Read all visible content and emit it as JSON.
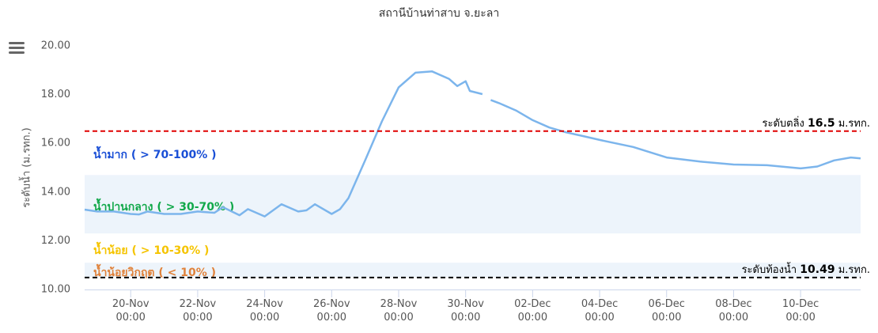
{
  "chart_data": {
    "type": "line",
    "title": "สถานีบ้านท่าสาบ จ.ยะลา",
    "y_label": "ระดับน้ำ (ม.รทก.)",
    "ylim": [
      10,
      20
    ],
    "yticks": [
      {
        "value": 10,
        "label": "10.00"
      },
      {
        "value": 12,
        "label": "12.00"
      },
      {
        "value": 14,
        "label": "14.00"
      },
      {
        "value": 16,
        "label": "16.00"
      },
      {
        "value": 18,
        "label": "18.00"
      },
      {
        "value": 20,
        "label": "20.00"
      }
    ],
    "xlim": [
      "18-Nov 15:00",
      "11-Dec 19:00"
    ],
    "xticks": [
      "20-Nov\n00:00",
      "22-Nov\n00:00",
      "24-Nov\n00:00",
      "26-Nov\n00:00",
      "28-Nov\n00:00",
      "30-Nov\n00:00",
      "02-Dec\n00:00",
      "04-Dec\n00:00",
      "06-Dec\n00:00",
      "08-Dec\n00:00",
      "10-Dec\n00:00"
    ],
    "grid": false,
    "x": [
      "18-Nov 15:00",
      "19-Nov 00:00",
      "19-Nov 12:00",
      "20-Nov 00:00",
      "20-Nov 06:00",
      "20-Nov 12:00",
      "21-Nov 00:00",
      "21-Nov 12:00",
      "22-Nov 00:00",
      "22-Nov 12:00",
      "22-Nov 18:00",
      "23-Nov 06:00",
      "23-Nov 12:00",
      "24-Nov 00:00",
      "24-Nov 12:00",
      "25-Nov 00:00",
      "25-Nov 06:00",
      "25-Nov 12:00",
      "26-Nov 00:00",
      "26-Nov 06:00",
      "26-Nov 12:00",
      "27-Nov 00:00",
      "27-Nov 12:00",
      "28-Nov 00:00",
      "28-Nov 12:00",
      "29-Nov 00:00",
      "29-Nov 12:00",
      "29-Nov 18:00",
      "30-Nov 00:00",
      "30-Nov 03:00",
      "30-Nov 12:00",
      "30-Nov 15:00",
      "30-Nov 18:00",
      "01-Dec 00:00",
      "01-Dec 12:00",
      "02-Dec 00:00",
      "02-Dec 12:00",
      "03-Dec 00:00",
      "03-Dec 12:00",
      "04-Dec 00:00",
      "05-Dec 00:00",
      "06-Dec 00:00",
      "07-Dec 00:00",
      "08-Dec 00:00",
      "09-Dec 00:00",
      "10-Dec 00:00",
      "10-Dec 12:00",
      "11-Dec 00:00",
      "11-Dec 12:00",
      "11-Dec 19:00"
    ],
    "series": [
      {
        "name": "ระดับน้ำ",
        "color": "#7cb5ec",
        "values": [
          13.28,
          13.2,
          13.2,
          13.1,
          13.08,
          13.2,
          13.1,
          13.1,
          13.2,
          13.15,
          13.38,
          13.05,
          13.3,
          13.0,
          13.5,
          13.2,
          13.25,
          13.5,
          13.1,
          13.3,
          13.75,
          15.3,
          16.9,
          18.3,
          18.9,
          18.95,
          18.65,
          18.35,
          18.55,
          18.15,
          18.02,
          null,
          17.78,
          17.65,
          17.35,
          16.95,
          16.65,
          16.45,
          16.3,
          16.14,
          15.85,
          15.42,
          15.25,
          15.13,
          15.1,
          14.97,
          15.05,
          15.3,
          15.42,
          15.38
        ]
      }
    ],
    "bands": [
      {
        "from": 12.3,
        "to": 14.7,
        "color": "#edf4fb"
      },
      {
        "from": 10.5,
        "to": 11.1,
        "color": "#edf4fb"
      }
    ],
    "zones": [
      {
        "label": "น้ำมาก ( > 70-100% )",
        "color": "#1a4fd6"
      },
      {
        "label": "น้ำปานกลาง ( > 30-70% )",
        "color": "#11a84a"
      },
      {
        "label": "น้ำน้อย ( > 10-30% )",
        "color": "#f5c400"
      },
      {
        "label": "น้ำน้อยวิกฤต ( < 10% )",
        "color": "#e0823b"
      }
    ],
    "plot_lines": [
      {
        "value": 16.5,
        "color": "#e00000",
        "prefix": "ระดับตลิ่ง",
        "suffix": "ม.รทก."
      },
      {
        "value": 10.49,
        "color": "#000000",
        "prefix": "ระดับท้องน้ำ",
        "suffix": "ม.รทก."
      }
    ]
  }
}
